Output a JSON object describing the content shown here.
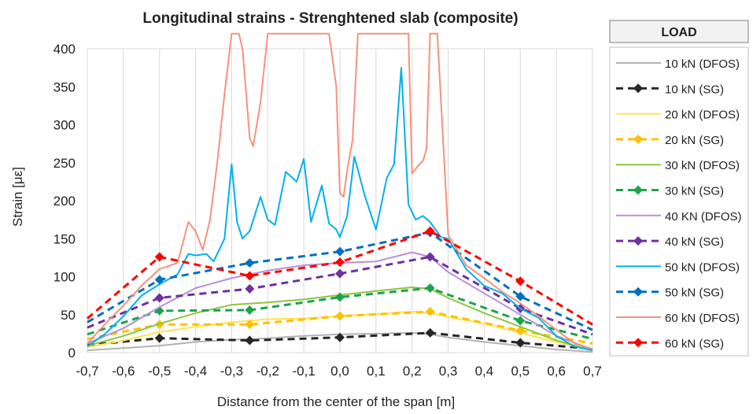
{
  "chart_data": {
    "type": "line",
    "title": "Longitudinal strains - Strenghtened slab (composite)",
    "xlabel": "Distance from the center of the span [m]",
    "ylabel": "Strain [με]",
    "xlim": [
      -0.7,
      0.7
    ],
    "ylim": [
      0,
      400
    ],
    "xticks": [
      "-0,7",
      "-0,6",
      "-0,5",
      "-0,4",
      "-0,3",
      "-0,2",
      "-0,1",
      "0,0",
      "0,1",
      "0,2",
      "0,3",
      "0,4",
      "0,5",
      "0,6",
      "0,7"
    ],
    "yticks": [
      "0",
      "50",
      "100",
      "150",
      "200",
      "250",
      "300",
      "350",
      "400"
    ],
    "grid": "vertical",
    "legend": {
      "title": "LOAD",
      "placement": "right"
    },
    "series": [
      {
        "name": "10 kN (DFOS)",
        "color": "#b3b3b3",
        "style": "solid",
        "x": [
          -0.7,
          -0.6,
          -0.5,
          -0.4,
          -0.3,
          -0.2,
          -0.1,
          0.0,
          0.1,
          0.2,
          0.25,
          0.3,
          0.4,
          0.5,
          0.6,
          0.7
        ],
        "y": [
          3,
          6,
          9,
          14,
          17,
          19,
          22,
          24,
          25,
          26,
          24,
          20,
          14,
          9,
          4,
          1
        ]
      },
      {
        "name": "10 kN (SG)",
        "color": "#262626",
        "style": "dashed",
        "x": [
          -0.7,
          -0.5,
          -0.25,
          0.0,
          0.25,
          0.5,
          0.7
        ],
        "y": [
          10,
          19,
          16,
          20,
          26,
          13,
          5
        ]
      },
      {
        "name": "20 kN (DFOS)",
        "color": "#ffe44d",
        "style": "solid",
        "x": [
          -0.7,
          -0.6,
          -0.5,
          -0.4,
          -0.3,
          -0.2,
          -0.1,
          0.0,
          0.1,
          0.2,
          0.25,
          0.3,
          0.4,
          0.5,
          0.6,
          0.7
        ],
        "y": [
          7,
          16,
          27,
          34,
          40,
          44,
          45,
          48,
          51,
          54,
          52,
          47,
          38,
          26,
          14,
          3
        ]
      },
      {
        "name": "20 kN (SG)",
        "color": "#ffc000",
        "style": "dashed",
        "x": [
          -0.7,
          -0.5,
          -0.25,
          0.0,
          0.25,
          0.5,
          0.7
        ],
        "y": [
          18,
          37,
          37,
          48,
          54,
          29,
          12
        ]
      },
      {
        "name": "30 kN (DFOS)",
        "color": "#8dc63f",
        "style": "solid",
        "x": [
          -0.7,
          -0.6,
          -0.5,
          -0.4,
          -0.3,
          -0.2,
          -0.1,
          0.0,
          0.1,
          0.2,
          0.25,
          0.3,
          0.4,
          0.5,
          0.6,
          0.7
        ],
        "y": [
          9,
          22,
          38,
          52,
          63,
          66,
          70,
          76,
          81,
          86,
          84,
          72,
          52,
          34,
          16,
          3
        ]
      },
      {
        "name": "30 kN (SG)",
        "color": "#1ea24e",
        "style": "dashed",
        "x": [
          -0.7,
          -0.5,
          -0.25,
          0.0,
          0.25,
          0.5,
          0.7
        ],
        "y": [
          24,
          55,
          56,
          73,
          85,
          42,
          18
        ]
      },
      {
        "name": "40 KN (DFOS)",
        "color": "#b98fd9",
        "style": "solid",
        "x": [
          -0.7,
          -0.6,
          -0.5,
          -0.4,
          -0.3,
          -0.2,
          -0.1,
          0.0,
          0.1,
          0.2,
          0.25,
          0.3,
          0.4,
          0.5,
          0.6,
          0.7
        ],
        "y": [
          12,
          32,
          60,
          85,
          98,
          108,
          115,
          118,
          120,
          132,
          126,
          106,
          78,
          50,
          22,
          4
        ]
      },
      {
        "name": "40 kN (SG)",
        "color": "#7030a0",
        "style": "dashed",
        "x": [
          -0.7,
          -0.5,
          -0.25,
          0.0,
          0.25,
          0.5,
          0.7
        ],
        "y": [
          33,
          72,
          84,
          104,
          126,
          58,
          24
        ]
      },
      {
        "name": "50 kN (DFOS)",
        "color": "#00b0f0",
        "style": "solid",
        "x": [
          -0.7,
          -0.65,
          -0.6,
          -0.55,
          -0.5,
          -0.45,
          -0.42,
          -0.4,
          -0.37,
          -0.35,
          -0.32,
          -0.3,
          -0.285,
          -0.27,
          -0.25,
          -0.22,
          -0.2,
          -0.18,
          -0.15,
          -0.12,
          -0.1,
          -0.08,
          -0.05,
          -0.03,
          -0.01,
          0.0,
          0.02,
          0.04,
          0.07,
          0.1,
          0.13,
          0.15,
          0.17,
          0.19,
          0.21,
          0.23,
          0.25,
          0.28,
          0.3,
          0.35,
          0.4,
          0.45,
          0.5,
          0.55,
          0.6,
          0.65,
          0.7
        ],
        "y": [
          8,
          25,
          48,
          75,
          90,
          103,
          130,
          128,
          130,
          120,
          150,
          248,
          172,
          150,
          160,
          205,
          175,
          168,
          238,
          225,
          255,
          172,
          220,
          170,
          162,
          152,
          180,
          258,
          205,
          162,
          230,
          248,
          375,
          195,
          175,
          180,
          172,
          152,
          150,
          110,
          88,
          78,
          58,
          46,
          22,
          8,
          3
        ]
      },
      {
        "name": "50 kN (SG)",
        "color": "#0070c0",
        "style": "dashed",
        "x": [
          -0.7,
          -0.5,
          -0.25,
          0.0,
          0.25,
          0.5,
          0.7
        ],
        "y": [
          40,
          96,
          118,
          133,
          158,
          74,
          30
        ]
      },
      {
        "name": "60 kN (DFOS)",
        "color": "#f4937e",
        "style": "solid",
        "x": [
          -0.7,
          -0.65,
          -0.6,
          -0.55,
          -0.5,
          -0.45,
          -0.42,
          -0.4,
          -0.38,
          -0.36,
          -0.34,
          -0.32,
          -0.3,
          -0.295,
          -0.28,
          -0.27,
          -0.26,
          -0.25,
          -0.24,
          -0.22,
          -0.2,
          -0.17,
          -0.15,
          -0.13,
          -0.12,
          -0.11,
          -0.1,
          -0.085,
          -0.07,
          -0.05,
          -0.03,
          -0.01,
          0.0,
          0.01,
          0.02,
          0.035,
          0.05,
          0.08,
          0.1,
          0.13,
          0.15,
          0.17,
          0.19,
          0.2,
          0.22,
          0.23,
          0.24,
          0.25,
          0.27,
          0.3,
          0.35,
          0.4,
          0.45,
          0.5,
          0.55,
          0.6,
          0.65,
          0.7
        ],
        "y": [
          12,
          38,
          62,
          88,
          110,
          118,
          172,
          160,
          135,
          175,
          250,
          340,
          420,
          420,
          420,
          400,
          342,
          282,
          272,
          330,
          420,
          420,
          420,
          420,
          420,
          420,
          420,
          420,
          420,
          420,
          420,
          350,
          210,
          205,
          240,
          280,
          420,
          420,
          420,
          420,
          420,
          420,
          420,
          236,
          248,
          252,
          268,
          420,
          420,
          155,
          115,
          98,
          80,
          65,
          48,
          30,
          12,
          5
        ]
      },
      {
        "name": "60 kN (SG)",
        "color": "#ff0000",
        "style": "dashed",
        "x": [
          -0.7,
          -0.5,
          -0.25,
          0.0,
          0.25,
          0.5,
          0.7
        ],
        "y": [
          45,
          126,
          101,
          119,
          160,
          94,
          37
        ]
      }
    ]
  }
}
